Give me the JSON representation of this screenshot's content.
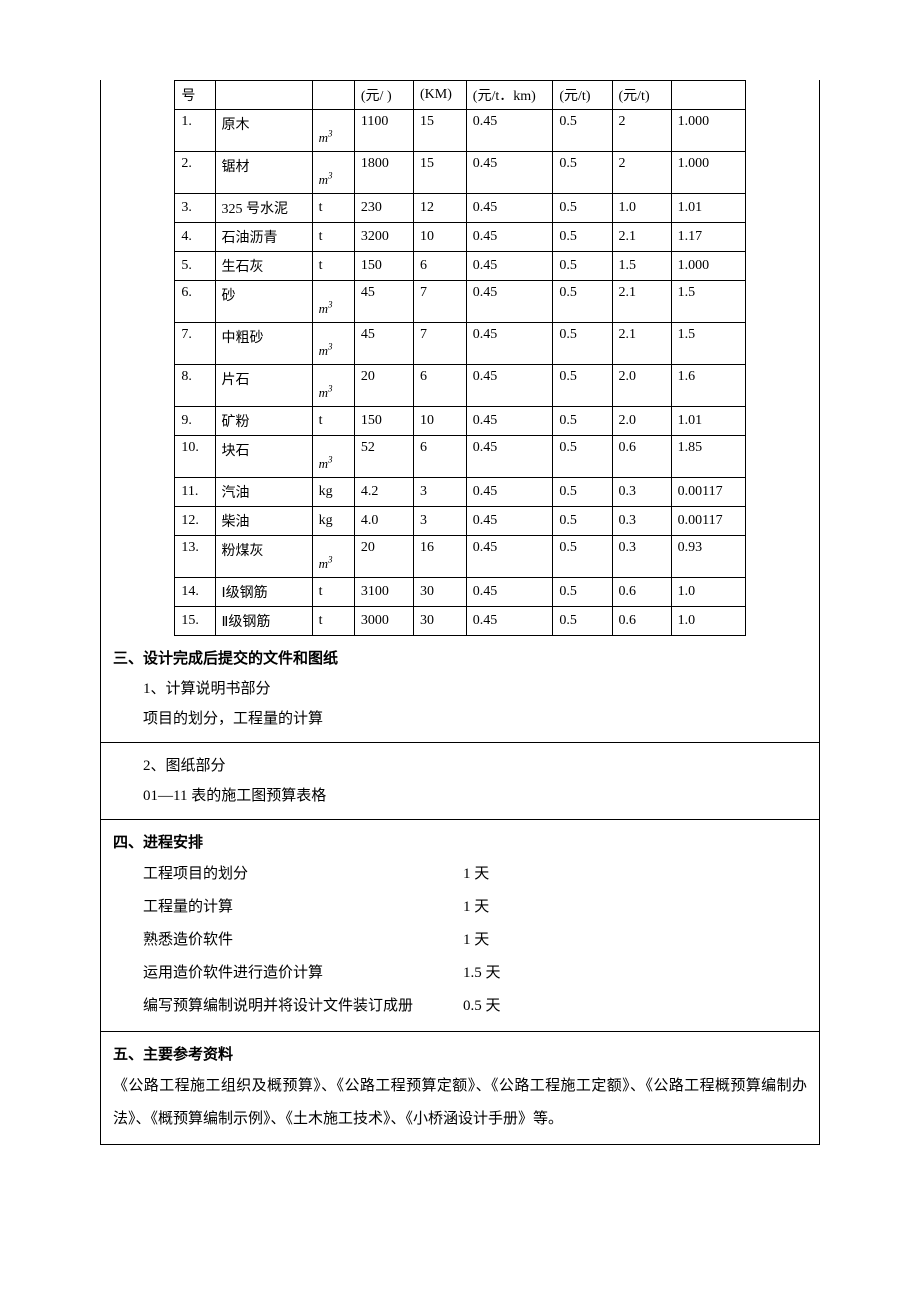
{
  "table": {
    "header": {
      "c1": "号",
      "c4": "(元/  )",
      "c5": "(KM)",
      "c6": "(元/t．km)",
      "c7": "(元/t)",
      "c8": "(元/t)"
    },
    "unit_m3": "m",
    "unit_m3_sup": "3",
    "rows": [
      {
        "no": "1.",
        "name": "原木",
        "unit": "m3",
        "c4": "1100",
        "c5": "15",
        "c6": "0.45",
        "c7": "0.5",
        "c8": "2",
        "c9": "1.000",
        "tall": true
      },
      {
        "no": "2.",
        "name": "锯材",
        "unit": "m3",
        "c4": "1800",
        "c5": "15",
        "c6": "0.45",
        "c7": "0.5",
        "c8": "2",
        "c9": "1.000",
        "tall": true
      },
      {
        "no": "3.",
        "name": "325 号水泥",
        "unit": "t",
        "c4": "230",
        "c5": "12",
        "c6": "0.45",
        "c7": "0.5",
        "c8": "1.0",
        "c9": "1.01"
      },
      {
        "no": "4.",
        "name": "石油沥青",
        "unit": "t",
        "c4": "3200",
        "c5": "10",
        "c6": "0.45",
        "c7": "0.5",
        "c8": "2.1",
        "c9": "1.17"
      },
      {
        "no": "5.",
        "name": "生石灰",
        "unit": "t",
        "c4": "150",
        "c5": "6",
        "c6": "0.45",
        "c7": "0.5",
        "c8": "1.5",
        "c9": "1.000"
      },
      {
        "no": "6.",
        "name": "砂",
        "unit": "m3",
        "c4": "45",
        "c5": "7",
        "c6": "0.45",
        "c7": "0.5",
        "c8": "2.1",
        "c9": "1.5",
        "tall": true
      },
      {
        "no": "7.",
        "name": "中粗砂",
        "unit": "m3",
        "c4": "45",
        "c5": "7",
        "c6": "0.45",
        "c7": "0.5",
        "c8": "2.1",
        "c9": "1.5",
        "tall": true
      },
      {
        "no": "8.",
        "name": "片石",
        "unit": "m3",
        "c4": "20",
        "c5": "6",
        "c6": "0.45",
        "c7": "0.5",
        "c8": "2.0",
        "c9": "1.6",
        "tall": true
      },
      {
        "no": "9.",
        "name": "矿粉",
        "unit": "t",
        "c4": "150",
        "c5": "10",
        "c6": "0.45",
        "c7": "0.5",
        "c8": "2.0",
        "c9": "1.01"
      },
      {
        "no": "10.",
        "name": "块石",
        "unit": "m3",
        "c4": "52",
        "c5": "6",
        "c6": "0.45",
        "c7": "0.5",
        "c8": "0.6",
        "c9": "1.85",
        "tall": true
      },
      {
        "no": "11.",
        "name": "汽油",
        "unit": "kg",
        "c4": "4.2",
        "c5": "3",
        "c6": "0.45",
        "c7": "0.5",
        "c8": "0.3",
        "c9": "0.00117"
      },
      {
        "no": "12.",
        "name": "柴油",
        "unit": "kg",
        "c4": "4.0",
        "c5": "3",
        "c6": "0.45",
        "c7": "0.5",
        "c8": "0.3",
        "c9": "0.00117"
      },
      {
        "no": "13.",
        "name": "粉煤灰",
        "unit": "m3",
        "c4": "20",
        "c5": "16",
        "c6": "0.45",
        "c7": "0.5",
        "c8": "0.3",
        "c9": "0.93",
        "tall": true
      },
      {
        "no": "14.",
        "name": "Ⅰ级钢筋",
        "unit": "t",
        "c4": "3100",
        "c5": "30",
        "c6": "0.45",
        "c7": "0.5",
        "c8": "0.6",
        "c9": "1.0"
      },
      {
        "no": "15.",
        "name": "Ⅱ级钢筋",
        "unit": "t",
        "c4": "3000",
        "c5": "30",
        "c6": "0.45",
        "c7": "0.5",
        "c8": "0.6",
        "c9": "1.0"
      }
    ]
  },
  "section3": {
    "heading": "三、设计完成后提交的文件和图纸",
    "line1": "1、计算说明书部分",
    "line2": "项目的划分，工程量的计算",
    "line3": "2、图纸部分",
    "line4": "01—11 表的施工图预算表格"
  },
  "section4": {
    "heading": "四、进程安排",
    "items": [
      {
        "label": "工程项目的划分",
        "value": "1 天"
      },
      {
        "label": "工程量的计算",
        "value": "1 天"
      },
      {
        "label": "熟悉造价软件",
        "value": "1 天"
      },
      {
        "label": "运用造价软件进行造价计算",
        "value": "1.5 天"
      },
      {
        "label": "编写预算编制说明并将设计文件装订成册",
        "value": "0.5 天"
      }
    ]
  },
  "section5": {
    "heading": "五、主要参考资料",
    "text": "《公路工程施工组织及概预算》、《公路工程预算定额》、《公路工程施工定额》、《公路工程概预算编制办法》、《概预算编制示例》、《土木施工技术》、《小桥涵设计手册》等。"
  },
  "colwidths": {
    "blank": "70",
    "c1": "38",
    "c2": "92",
    "c3": "40",
    "c4": "56",
    "c5": "50",
    "c6": "82",
    "c7": "56",
    "c8": "56",
    "c9": "70",
    "blank_r": "70"
  }
}
